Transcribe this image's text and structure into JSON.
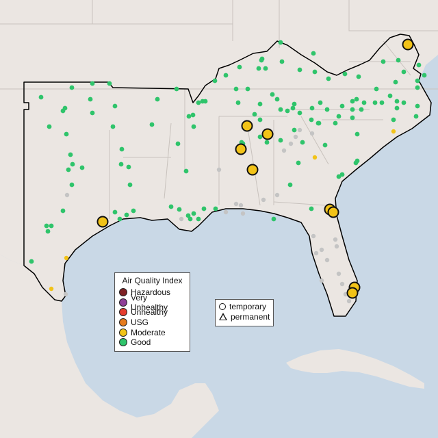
{
  "colors": {
    "water": "#c9d8e6",
    "land": "#ebe6e2",
    "boundary": "#c8c2bd",
    "region_outline": "#000000",
    "hazardous": "#7e2224",
    "very_unhealthy": "#8f3f97",
    "unhealthy": "#e53d2f",
    "usg": "#e57b1e",
    "moderate": "#f2c318",
    "good": "#2fc46b",
    "inactive": "#c4c4c4"
  },
  "aqi_legend": {
    "title": "Air Quality Index",
    "items": [
      {
        "label": "Hazardous",
        "color": "#7e2224"
      },
      {
        "label": "Very Unhealthy",
        "color": "#8f3f97"
      },
      {
        "label": "Unhealthy",
        "color": "#e53d2f"
      },
      {
        "label": "USG",
        "color": "#e57b1e"
      },
      {
        "label": "Moderate",
        "color": "#f2c318"
      },
      {
        "label": "Good",
        "color": "#2fc46b"
      }
    ]
  },
  "type_legend": {
    "temporary": "temporary",
    "permanent": "permanent"
  }
}
